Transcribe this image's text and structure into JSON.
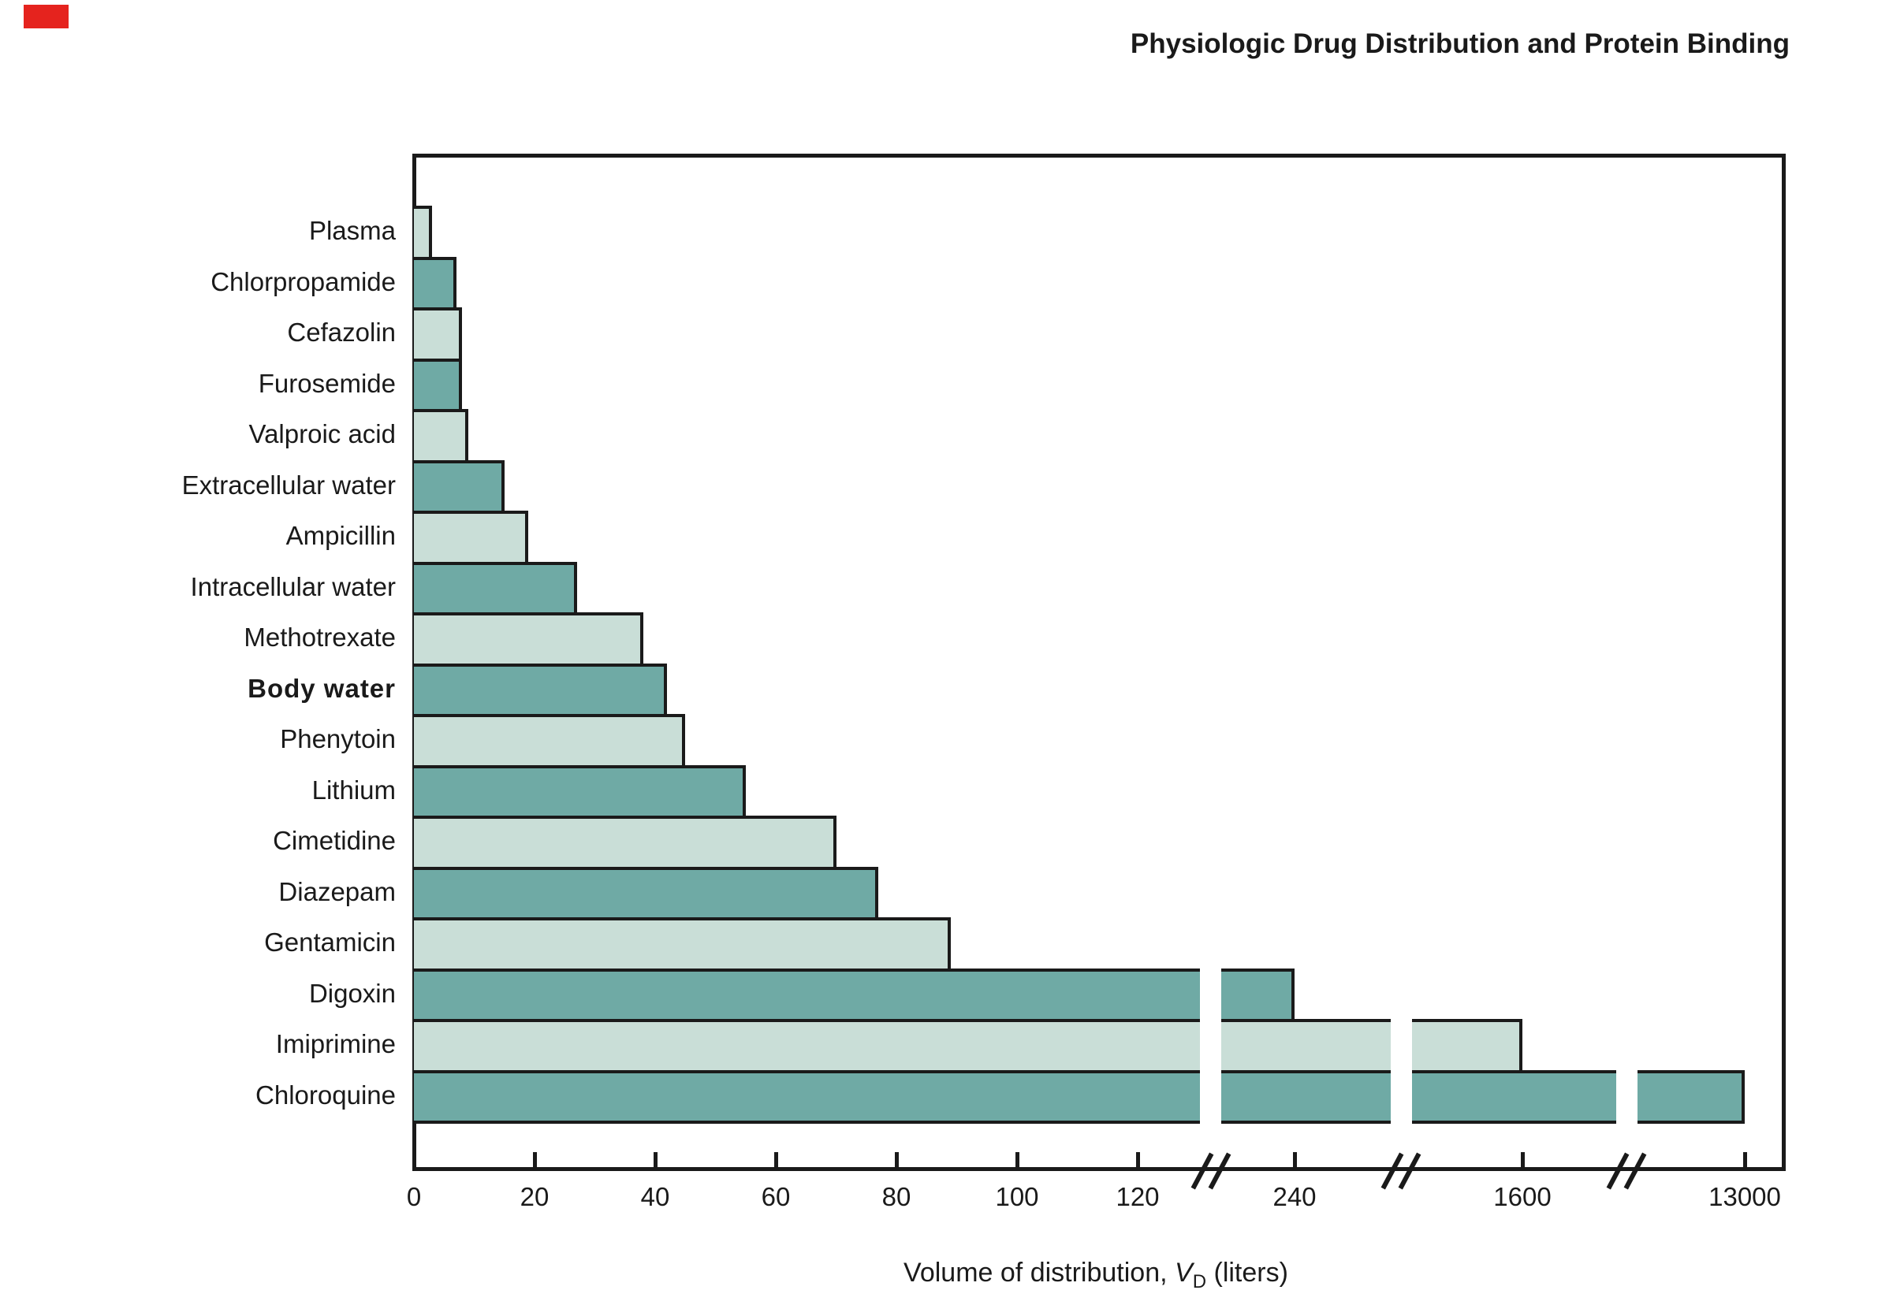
{
  "page": {
    "marker_color": "#e5231e"
  },
  "chart_data": {
    "type": "bar",
    "orientation": "horizontal",
    "title": "Physiologic Drug Distribution and Protein Binding",
    "xlabel": {
      "prefix": "Volume of distribution, ",
      "variable": "V",
      "subscript": "D",
      "suffix": " (liters)"
    },
    "categories": [
      "Plasma",
      "Chlorpropamide",
      "Cefazolin",
      "Furosemide",
      "Valproic acid",
      "Extracellular water",
      "Ampicillin",
      "Intracellular water",
      "Methotrexate",
      "Body water",
      "Phenytoin",
      "Lithium",
      "Cimetidine",
      "Diazepam",
      "Gentamicin",
      "Digoxin",
      "Imiprimine",
      "Chloroquine"
    ],
    "values": [
      3,
      7,
      8,
      8,
      9,
      15,
      19,
      27,
      38,
      42,
      45,
      55,
      70,
      77,
      89,
      240,
      1600,
      13000
    ],
    "emphasized_category": "Body water",
    "x_ticks": [
      0,
      20,
      40,
      60,
      80,
      100,
      120,
      240,
      1600,
      13000
    ],
    "scale_breaks_after": [
      120,
      240,
      1600
    ],
    "xlim": [
      0,
      13000
    ],
    "grid": false,
    "legend": "none",
    "colors": {
      "bar_light": "#c9ded7",
      "bar_dark": "#6faaa5",
      "outline": "#1a1a1a"
    }
  }
}
